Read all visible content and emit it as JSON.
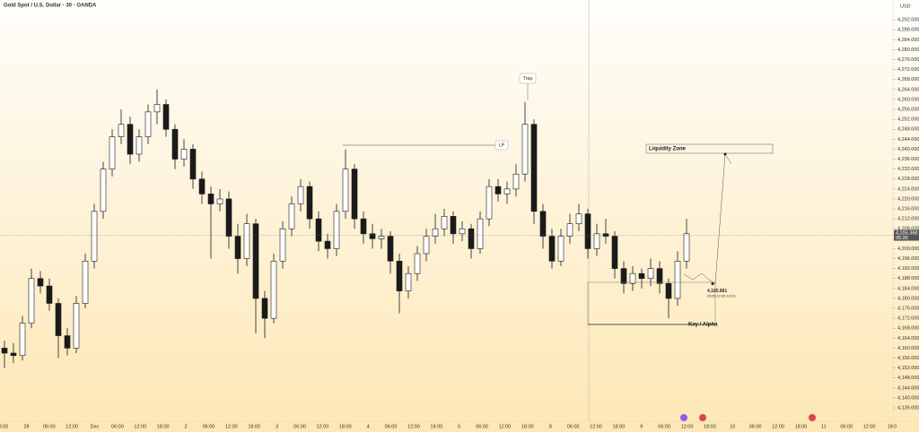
{
  "chart_data": {
    "type": "candlestick",
    "title": "Gold Spot / U.S. Dollar · 30 · OANDA",
    "currency": "USD",
    "up_color": "#ffffff",
    "down_color": "#1a1a1a",
    "grid": false,
    "ylim": [
      4130.6,
      4300
    ],
    "yticks": [
      {
        "value": 4136,
        "label": "4,136.000"
      },
      {
        "value": 4140,
        "label": "4,140.000"
      },
      {
        "value": 4144,
        "label": "4,144.000"
      },
      {
        "value": 4148,
        "label": "4,148.000"
      },
      {
        "value": 4152,
        "label": "4,152.000"
      },
      {
        "value": 4156,
        "label": "4,156.000"
      },
      {
        "value": 4160,
        "label": "4,160.000"
      },
      {
        "value": 4164,
        "label": "4,164.000"
      },
      {
        "value": 4168,
        "label": "4,168.000"
      },
      {
        "value": 4172,
        "label": "4,172.000"
      },
      {
        "value": 4176,
        "label": "4,176.000"
      },
      {
        "value": 4180,
        "label": "4,180.000"
      },
      {
        "value": 4184,
        "label": "4,184.000"
      },
      {
        "value": 4188,
        "label": "4,188.000"
      },
      {
        "value": 4192,
        "label": "4,192.000"
      },
      {
        "value": 4196,
        "label": "4,196.000"
      },
      {
        "value": 4200,
        "label": "4,200.000"
      },
      {
        "value": 4204,
        "label": "4,204.000"
      },
      {
        "value": 4208,
        "label": "4,208.000"
      },
      {
        "value": 4212,
        "label": "4,212.000"
      },
      {
        "value": 4216,
        "label": "4,216.000"
      },
      {
        "value": 4220,
        "label": "4,220.000"
      },
      {
        "value": 4224,
        "label": "4,224.000"
      },
      {
        "value": 4228,
        "label": "4,228.000"
      },
      {
        "value": 4232,
        "label": "4,232.000"
      },
      {
        "value": 4236,
        "label": "4,236.000"
      },
      {
        "value": 4240,
        "label": "4,240.000"
      },
      {
        "value": 4244,
        "label": "4,244.000"
      },
      {
        "value": 4248,
        "label": "4,248.000"
      },
      {
        "value": 4252,
        "label": "4,252.000"
      },
      {
        "value": 4256,
        "label": "4,256.000"
      },
      {
        "value": 4260,
        "label": "4,260.000"
      },
      {
        "value": 4264,
        "label": "4,264.000"
      },
      {
        "value": 4268,
        "label": "4,268.000"
      },
      {
        "value": 4272,
        "label": "4,272.000"
      },
      {
        "value": 4276,
        "label": "4,276.000"
      },
      {
        "value": 4280,
        "label": "4,280.000"
      },
      {
        "value": 4284,
        "label": "4,284.000"
      },
      {
        "value": 4288,
        "label": "4,288.000"
      },
      {
        "value": 4292,
        "label": "4,292.000"
      }
    ],
    "x_axis_labels": [
      "8:00",
      "28",
      "06:00",
      "12:00",
      "Dec",
      "06:00",
      "12:00",
      "18:00",
      "2",
      "06:00",
      "12:00",
      "18:00",
      "3",
      "06:00",
      "12:00",
      "18:00",
      "4",
      "06:00",
      "12:00",
      "18:00",
      "5",
      "06:00",
      "12:00",
      "18:00",
      "8",
      "06:00",
      "12:00",
      "18:00",
      "9",
      "06:00",
      "12:00",
      "18:00",
      "10",
      "06:00",
      "12:00",
      "18:00",
      "11",
      "06:00",
      "12:00",
      "18:0"
    ],
    "open": [
      4160,
      4158,
      4157,
      4170,
      4188,
      4185,
      4178,
      4165,
      4160,
      4178,
      4195,
      4215,
      4232,
      4245,
      4250,
      4238,
      4245,
      4255,
      4258,
      4248,
      4236,
      4240,
      4228,
      4222,
      4218,
      4220,
      4205,
      4196,
      4210,
      4180,
      4172,
      4195,
      4208,
      4218,
      4225,
      4212,
      4203,
      4200,
      4215,
      4232,
      4212,
      4206,
      4204,
      4205,
      4195,
      4183,
      4190,
      4198,
      4205,
      4208,
      4213,
      4206,
      4208,
      4200,
      4212,
      4225,
      4222,
      4224,
      4230,
      4250,
      4215,
      4205,
      4195,
      4205,
      4210,
      4214,
      4200,
      4206,
      4205,
      4192,
      4186,
      4190,
      4188,
      4192,
      4186,
      4180,
      4195
    ],
    "high": [
      4163,
      4162,
      4173,
      4192,
      4191,
      4188,
      4180,
      4168,
      4181,
      4198,
      4218,
      4235,
      4248,
      4256,
      4253,
      4248,
      4258,
      4264,
      4260,
      4250,
      4244,
      4242,
      4231,
      4225,
      4224,
      4223,
      4210,
      4214,
      4212,
      4183,
      4198,
      4211,
      4221,
      4228,
      4227,
      4215,
      4206,
      4218,
      4240,
      4234,
      4215,
      4210,
      4208,
      4207,
      4198,
      4193,
      4201,
      4208,
      4214,
      4216,
      4215,
      4211,
      4210,
      4215,
      4228,
      4228,
      4227,
      4234,
      4259,
      4252,
      4218,
      4208,
      4208,
      4214,
      4218,
      4216,
      4210,
      4212,
      4207,
      4195,
      4193,
      4192,
      4196,
      4195,
      4188,
      4199,
      4212
    ],
    "low": [
      4152,
      4154,
      4155,
      4168,
      4182,
      4175,
      4156,
      4157,
      4158,
      4176,
      4192,
      4212,
      4229,
      4242,
      4234,
      4235,
      4242,
      4250,
      4245,
      4232,
      4233,
      4224,
      4218,
      4196,
      4215,
      4200,
      4190,
      4193,
      4166,
      4164,
      4170,
      4192,
      4205,
      4215,
      4208,
      4199,
      4196,
      4197,
      4212,
      4208,
      4202,
      4200,
      4200,
      4190,
      4174,
      4180,
      4187,
      4195,
      4202,
      4205,
      4202,
      4203,
      4196,
      4198,
      4209,
      4219,
      4218,
      4221,
      4227,
      4210,
      4200,
      4192,
      4193,
      4202,
      4207,
      4196,
      4197,
      4202,
      4188,
      4182,
      4183,
      4184,
      4185,
      4182,
      4172,
      4177,
      4192
    ],
    "close": [
      4158,
      4157,
      4170,
      4188,
      4185,
      4178,
      4165,
      4160,
      4178,
      4195,
      4215,
      4232,
      4245,
      4250,
      4238,
      4245,
      4255,
      4258,
      4248,
      4236,
      4240,
      4228,
      4222,
      4218,
      4220,
      4205,
      4196,
      4210,
      4180,
      4172,
      4195,
      4208,
      4218,
      4225,
      4212,
      4203,
      4200,
      4215,
      4232,
      4212,
      4206,
      4204,
      4205,
      4195,
      4183,
      4190,
      4198,
      4205,
      4208,
      4213,
      4206,
      4208,
      4200,
      4212,
      4225,
      4222,
      4224,
      4230,
      4250,
      4215,
      4205,
      4195,
      4205,
      4210,
      4214,
      4200,
      4206,
      4205,
      4192,
      4186,
      4190,
      4188,
      4192,
      4186,
      4180,
      4195,
      4206
    ],
    "last_price": {
      "value": 4205.368,
      "label": "4,205.368"
    },
    "countdown": "05:35",
    "annotations": {
      "trap": "Trap",
      "lp": "LP",
      "liquidity_zone": "Liquidity Zone",
      "key_alpha": "Key / Alpha"
    },
    "target": {
      "value": 4185.881,
      "label": "4,185.881",
      "time": "2025-12-09 19:30"
    }
  }
}
